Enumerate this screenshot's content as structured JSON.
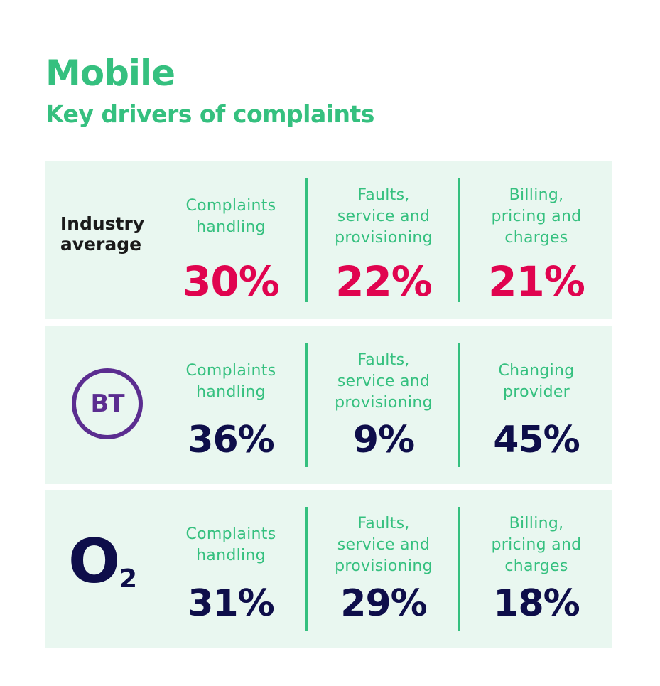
{
  "header": {
    "title": "Mobile",
    "subtitle": "Key drivers of complaints"
  },
  "rows": [
    {
      "label_lines": [
        "Industry",
        "average"
      ],
      "cells": [
        {
          "label_lines": [
            "Complaints",
            "handling"
          ],
          "value": "30%"
        },
        {
          "label_lines": [
            "Faults,",
            "service and",
            "provisioning"
          ],
          "value": "22%"
        },
        {
          "label_lines": [
            "Billing,",
            "pricing and",
            "charges"
          ],
          "value": "21%"
        }
      ]
    },
    {
      "logo": {
        "text": "BT",
        "icon": "bt-logo",
        "color": "#5b2d90"
      },
      "cells": [
        {
          "label_lines": [
            "Complaints",
            "handling"
          ],
          "value": "36%"
        },
        {
          "label_lines": [
            "Faults,",
            "service and",
            "provisioning"
          ],
          "value": "9%"
        },
        {
          "label_lines": [
            "Changing",
            "provider"
          ],
          "value": "45%"
        }
      ]
    },
    {
      "logo": {
        "text": "O",
        "subscript": "2",
        "icon": "o2-logo",
        "color": "#0e0e4a"
      },
      "cells": [
        {
          "label_lines": [
            "Complaints",
            "handling"
          ],
          "value": "31%"
        },
        {
          "label_lines": [
            "Faults,",
            "service and",
            "provisioning"
          ],
          "value": "29%"
        },
        {
          "label_lines": [
            "Billing,",
            "pricing and",
            "charges"
          ],
          "value": "18%"
        }
      ]
    }
  ],
  "colors": {
    "accent_green": "#35c07f",
    "highlight_red": "#e0044f",
    "navy": "#0e0e4a",
    "row_background": "#e9f7f0"
  }
}
